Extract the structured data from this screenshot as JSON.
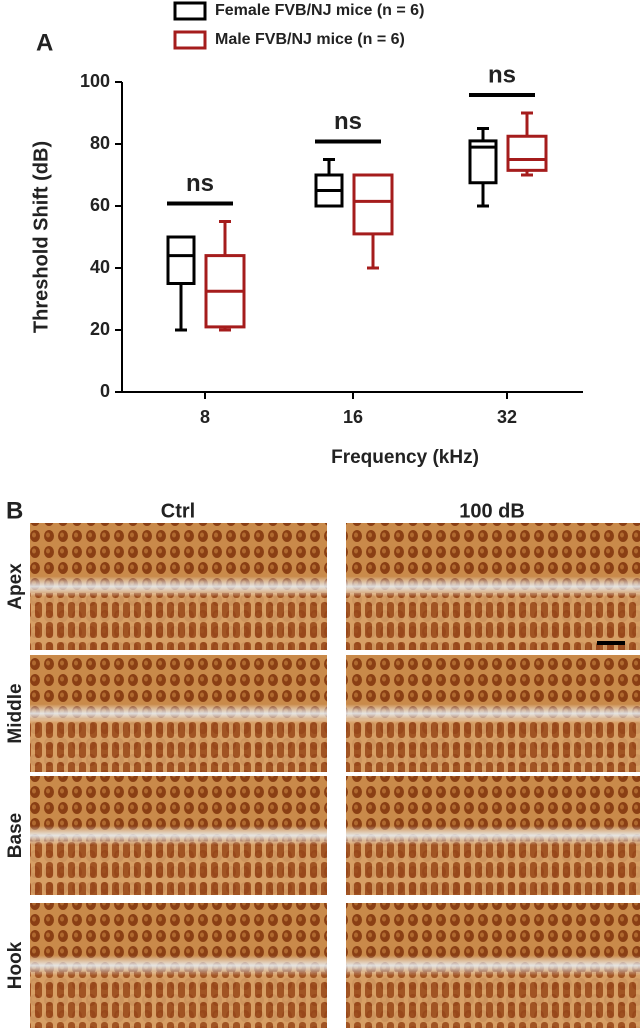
{
  "chart_data": {
    "type": "box",
    "panel_label": "A",
    "ylabel": "Threshold Shift (dB)",
    "xlabel": "Frequency (kHz)",
    "categories": [
      "8",
      "16",
      "32"
    ],
    "ylim": [
      0,
      100
    ],
    "yticks": [
      0,
      20,
      40,
      60,
      80,
      100
    ],
    "series": [
      {
        "name": "Female FVB/NJ mice (n = 6)",
        "color": "#000000",
        "min": [
          20,
          60,
          60
        ],
        "q1": [
          35,
          60,
          67.5
        ],
        "median": [
          44,
          65,
          79
        ],
        "q3": [
          50,
          70,
          81
        ],
        "max": [
          50,
          75,
          85
        ]
      },
      {
        "name": "Male FVB/NJ mice (n = 6)",
        "color": "#a51c1c",
        "min": [
          20,
          40,
          70
        ],
        "q1": [
          21,
          51,
          71.5
        ],
        "median": [
          32.5,
          61.5,
          75
        ],
        "q3": [
          44,
          70,
          82.5
        ],
        "max": [
          55,
          70,
          90
        ]
      }
    ],
    "annotations": [
      "ns",
      "ns",
      "ns"
    ]
  },
  "panel_b": {
    "panel_label": "B",
    "columns": [
      "Ctrl",
      "100 dB"
    ],
    "rows": [
      "Apex",
      "Middle",
      "Base",
      "Hook"
    ]
  }
}
